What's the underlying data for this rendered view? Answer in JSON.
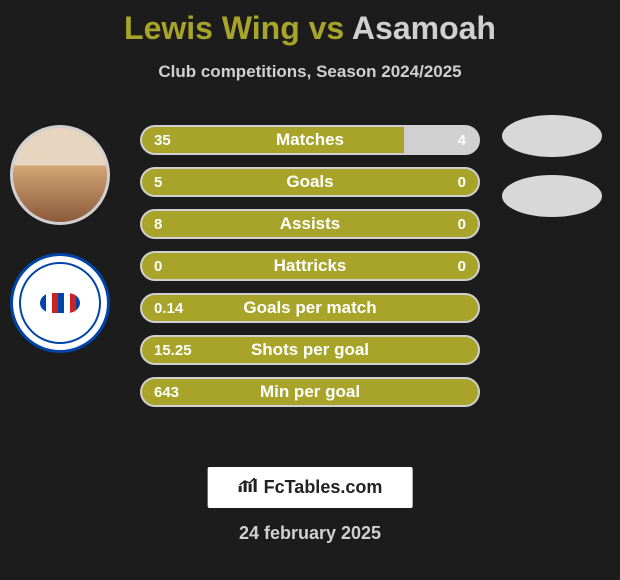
{
  "title": {
    "player1": "Lewis Wing",
    "vs": "vs",
    "player2": "Asamoah"
  },
  "subtitle": "Club competitions, Season 2024/2025",
  "rows": [
    {
      "label": "Matches",
      "left": "35",
      "right": "4",
      "left_pct": 78,
      "right_val_dark": false
    },
    {
      "label": "Goals",
      "left": "5",
      "right": "0",
      "left_pct": 100,
      "right_val_dark": false
    },
    {
      "label": "Assists",
      "left": "8",
      "right": "0",
      "left_pct": 100,
      "right_val_dark": false
    },
    {
      "label": "Hattricks",
      "left": "0",
      "right": "0",
      "left_pct": 100,
      "right_val_dark": false
    },
    {
      "label": "Goals per match",
      "left": "0.14",
      "right": "",
      "left_pct": 100,
      "right_val_dark": false
    },
    {
      "label": "Shots per goal",
      "left": "15.25",
      "right": "",
      "left_pct": 100,
      "right_val_dark": false
    },
    {
      "label": "Min per goal",
      "left": "643",
      "right": "",
      "left_pct": 100,
      "right_val_dark": false
    }
  ],
  "colors": {
    "background": "#1c1c1c",
    "bar_primary": "#a8a42a",
    "bar_secondary": "#d0d0d0",
    "text_main": "#d0d0d0",
    "text_on_bar": "#ffffff"
  },
  "attribution": "FcTables.com",
  "date": "24 february 2025"
}
